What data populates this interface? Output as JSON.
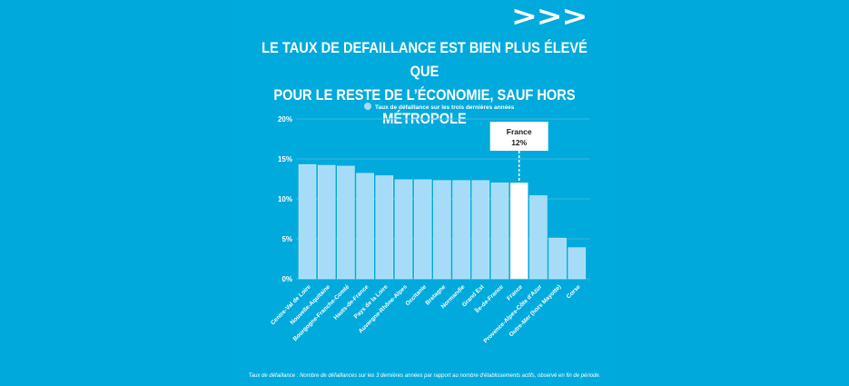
{
  "header": {
    "arrows": ">>>"
  },
  "footnote": "Taux de défaillance : Nombre de défaillances sur les 3 dernières années par rapport au nombre d'établissements actifs, observé en fin de période.",
  "colors": {
    "background": "#00a9dc",
    "bar": "#a6dcf8",
    "highlight_bar": "#ffffff",
    "text": "#ffffff",
    "gridline": "#3ab8e4"
  },
  "chart_data": {
    "type": "bar",
    "title": [
      "LE TAUX DE DEFAILLANCE EST BIEN PLUS ÉLEVÉ QUE",
      "POUR LE RESTE DE L’ÉCONOMIE, SAUF HORS MÉTROPOLE"
    ],
    "legend": {
      "entries": [
        "Taux de défaillance sur les trois dernières années"
      ],
      "position": "top"
    },
    "xlabel": "",
    "ylabel": "",
    "ylim": [
      0,
      20
    ],
    "yticks": [
      0,
      5,
      10,
      15,
      20
    ],
    "ytick_labels": [
      "0%",
      "5%",
      "10%",
      "15%",
      "20%"
    ],
    "grid": true,
    "categories": [
      "Centre-Val de Loire",
      "Nouvelle-Aquitaine",
      "Bourgogne-Franche-Comté",
      "Hauts-de-France",
      "Pays de la Loire",
      "Auvergne-Rhône-Alpes",
      "Occitanie",
      "Bretagne",
      "Normandie",
      "Grand Est",
      "Île-de-France",
      "France",
      "Provence-Alpes-Côte d'Azur",
      "Outre-Mer (hors Mayotte)",
      "Corse"
    ],
    "series": [
      {
        "name": "Taux de défaillance sur les trois dernières années",
        "values": [
          14.3,
          14.2,
          14.1,
          13.2,
          12.9,
          12.4,
          12.4,
          12.3,
          12.3,
          12.3,
          12.0,
          12.0,
          10.4,
          5.1,
          3.9
        ]
      }
    ],
    "highlight": {
      "category": "France",
      "label_title": "France",
      "label_value": "12%"
    }
  }
}
